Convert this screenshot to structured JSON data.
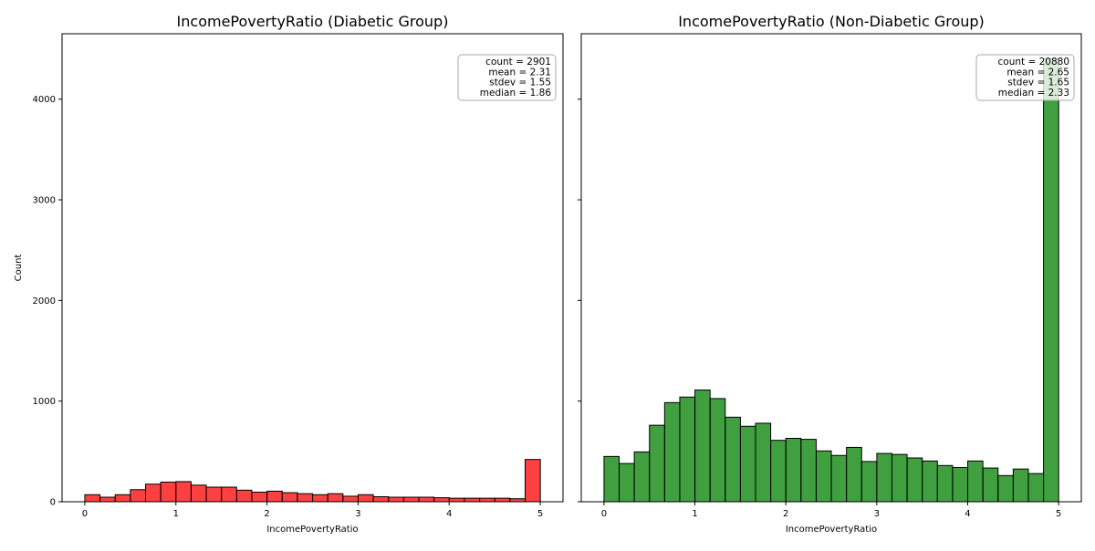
{
  "chart_data": [
    {
      "type": "bar",
      "title": "IncomePovertyRatio (Diabetic Group)",
      "xlabel": "IncomePovertyRatio",
      "ylabel": "Count",
      "xlim": [
        -0.25,
        5.25
      ],
      "ylim": [
        0,
        4650
      ],
      "xticks": [
        0,
        1,
        2,
        3,
        4,
        5
      ],
      "yticks": [
        0,
        1000,
        2000,
        3000,
        4000
      ],
      "bin_start": 0,
      "bin_width": 0.1667,
      "bar_color": "#ff0000",
      "values": [
        70,
        45,
        70,
        120,
        175,
        195,
        200,
        165,
        145,
        145,
        115,
        95,
        105,
        90,
        80,
        70,
        80,
        55,
        70,
        50,
        45,
        45,
        45,
        40,
        35,
        35,
        35,
        35,
        30,
        420
      ],
      "stats": [
        "count = 2901",
        "mean = 2.31",
        "stdev = 1.55",
        "median = 1.86"
      ]
    },
    {
      "type": "bar",
      "title": "IncomePovertyRatio (Non-Diabetic Group)",
      "xlabel": "IncomePovertyRatio",
      "ylabel": "",
      "xlim": [
        -0.25,
        5.25
      ],
      "ylim": [
        0,
        4650
      ],
      "xticks": [
        0,
        1,
        2,
        3,
        4,
        5
      ],
      "yticks": [
        0,
        1000,
        2000,
        3000,
        4000
      ],
      "bin_start": 0,
      "bin_width": 0.1667,
      "bar_color": "#008000",
      "values": [
        450,
        380,
        495,
        760,
        985,
        1040,
        1110,
        1025,
        840,
        750,
        780,
        610,
        630,
        620,
        505,
        460,
        540,
        400,
        480,
        470,
        435,
        405,
        360,
        340,
        405,
        335,
        260,
        325,
        280,
        4400
      ],
      "stats": [
        "count = 20880",
        "mean = 2.65",
        "stdev = 1.65",
        "median = 2.33"
      ]
    }
  ]
}
